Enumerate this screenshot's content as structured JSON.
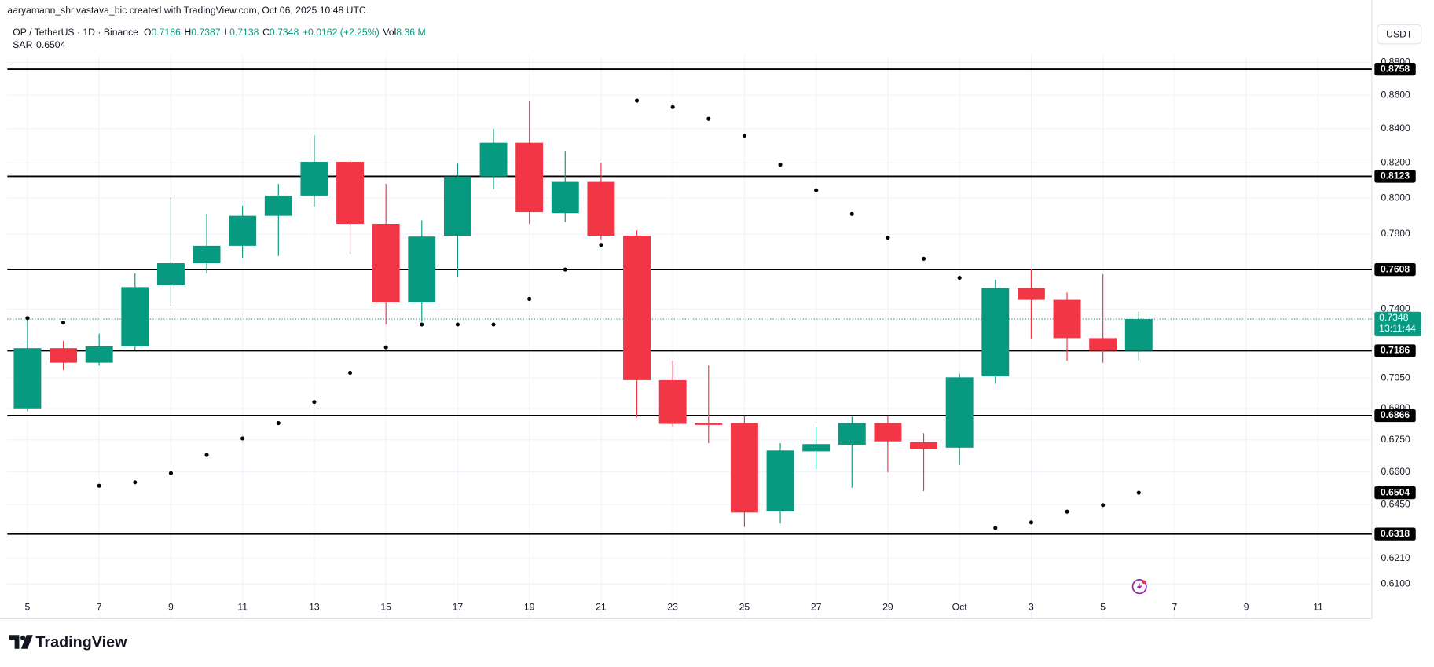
{
  "header": {
    "attribution": "aaryamann_shrivastava_bic created with TradingView.com, Oct 06, 2025 10:48 UTC",
    "brand": "TradingView"
  },
  "chart_data": {
    "type": "candlestick",
    "symbol": "OP / TetherUS · 1D · Binance",
    "legend": {
      "open": "O",
      "high": "H",
      "low": "L",
      "close": "C",
      "change": "+0.0162 (+2.25%)",
      "volume_label": "Vol",
      "volume": "8.36 M"
    },
    "currency": "USDT",
    "log_scale": true,
    "grid": true,
    "up_color": "#089981",
    "down_color": "#f23645",
    "categories": [
      "5",
      null,
      "7",
      null,
      "9",
      null,
      "11",
      null,
      "13",
      null,
      "15",
      null,
      "17",
      null,
      "19",
      null,
      "21",
      null,
      "23",
      null,
      "25",
      null,
      "27",
      null,
      "29",
      null,
      "Oct",
      null,
      "3",
      null,
      "5",
      null,
      "7",
      null,
      "9",
      null,
      "11"
    ],
    "open": [
      0.6901,
      0.7199,
      0.7126,
      0.7208,
      0.7525,
      0.7642,
      0.7736,
      0.7901,
      0.8014,
      0.8206,
      0.7856,
      0.7434,
      0.7791,
      0.8122,
      0.8317,
      0.7916,
      0.8091,
      0.7791,
      0.7039,
      0.683,
      0.683,
      0.6419,
      0.6696,
      0.6726,
      0.683,
      0.6739,
      0.6713,
      0.7058,
      0.751,
      0.7448,
      0.725,
      0.7186,
      null,
      null,
      null,
      null,
      null
    ],
    "high": [
      0.7353,
      0.7236,
      0.7273,
      0.7588,
      0.8003,
      0.7911,
      0.7957,
      0.808,
      0.836,
      0.8217,
      0.808,
      0.7876,
      0.8195,
      0.8398,
      0.8567,
      0.8269,
      0.8201,
      0.7821,
      0.7135,
      0.7112,
      0.6866,
      0.6734,
      0.6813,
      0.6861,
      0.6866,
      0.6782,
      0.7071,
      0.7554,
      0.7613,
      0.7486,
      0.7583,
      0.7387,
      null,
      null,
      null,
      null,
      null
    ],
    "low": [
      0.6888,
      0.7089,
      0.7112,
      0.719,
      0.7415,
      0.7588,
      0.7671,
      0.7681,
      0.7952,
      0.7691,
      0.732,
      0.7334,
      0.7569,
      0.8049,
      0.7856,
      0.7866,
      0.7771,
      0.6857,
      0.6813,
      0.6734,
      0.6349,
      0.6365,
      0.6611,
      0.6527,
      0.6598,
      0.6511,
      0.6632,
      0.7021,
      0.7245,
      0.7135,
      0.7126,
      0.7138,
      null,
      null,
      null,
      null,
      null
    ],
    "close": [
      0.7199,
      0.7126,
      0.7208,
      0.7515,
      0.7642,
      0.7736,
      0.7901,
      0.8014,
      0.8206,
      0.7856,
      0.7434,
      0.7786,
      0.8122,
      0.8317,
      0.7921,
      0.8091,
      0.7791,
      0.7039,
      0.6826,
      0.6821,
      0.6414,
      0.67,
      0.673,
      0.683,
      0.6743,
      0.6708,
      0.7053,
      0.751,
      0.7448,
      0.725,
      0.7186,
      0.7348,
      null,
      null,
      null,
      null,
      null
    ],
    "sar": {
      "name": "SAR",
      "color": "#000000",
      "values": [
        0.7353,
        0.733,
        0.6536,
        0.6552,
        0.6594,
        0.6679,
        0.6757,
        0.683,
        0.6932,
        0.7076,
        0.7203,
        0.732,
        0.732,
        0.732,
        0.7453,
        0.7608,
        0.7741,
        0.8567,
        0.8528,
        0.8458,
        0.8355,
        0.819,
        0.8044,
        0.7911,
        0.778,
        0.7666,
        0.7564,
        0.6345,
        0.637,
        0.6418,
        0.6448,
        0.6504,
        null,
        null,
        null,
        null,
        null
      ]
    },
    "levels": [
      0.8758,
      0.8123,
      0.7608,
      0.7186,
      0.6866,
      0.6318
    ],
    "level_color": "#000000",
    "current_price": 0.7348,
    "countdown": "13:11:44",
    "ylim": [
      0.6038,
      0.8847
    ],
    "yticks": [
      {
        "value": 0.88,
        "label": "0.8800"
      },
      {
        "value": 0.86,
        "label": "0.8600"
      },
      {
        "value": 0.84,
        "label": "0.8400"
      },
      {
        "value": 0.82,
        "label": "0.8200"
      },
      {
        "value": 0.8,
        "label": "0.8000"
      },
      {
        "value": 0.78,
        "label": "0.7800"
      },
      {
        "value": 0.74,
        "label": "0.7400"
      },
      {
        "value": 0.705,
        "label": "0.7050"
      },
      {
        "value": 0.69,
        "label": "0.6900"
      },
      {
        "value": 0.675,
        "label": "0.6750"
      },
      {
        "value": 0.66,
        "label": "0.6600"
      },
      {
        "value": 0.645,
        "label": "0.6450"
      },
      {
        "value": 0.621,
        "label": "0.6210"
      },
      {
        "value": 0.61,
        "label": "0.6100"
      }
    ]
  }
}
